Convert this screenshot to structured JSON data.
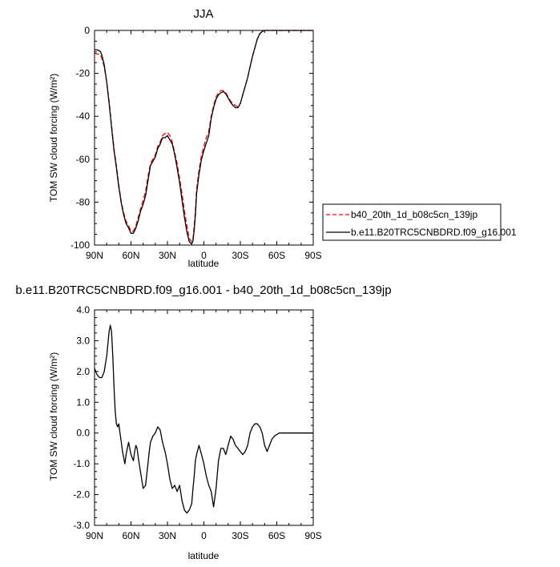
{
  "chart_data": [
    {
      "type": "line",
      "title": "JJA",
      "xlabel": "latitude",
      "ylabel": "TOM SW cloud forcing (W/m²)",
      "xlim": [
        90,
        -90
      ],
      "ylim": [
        -100,
        0
      ],
      "xticks": [
        90,
        60,
        30,
        0,
        -30,
        -60,
        -90
      ],
      "xtick_labels": [
        "90N",
        "60N",
        "30N",
        "0",
        "30S",
        "60S",
        "90S"
      ],
      "yticks": [
        0,
        -20,
        -40,
        -60,
        -80,
        -100
      ],
      "ytick_labels": [
        "0",
        "-20",
        "-40",
        "-60",
        "-80",
        "-100"
      ],
      "grid": false,
      "legend_position": "right",
      "series": [
        {
          "name": "b40_20th_1d_b08c5cn_139jp",
          "color": "#ff0000",
          "dash": "dashed",
          "x": [
            90,
            88,
            86,
            85,
            84,
            82,
            80,
            78,
            76,
            74,
            72,
            70,
            68,
            66,
            64,
            62,
            60,
            58,
            56,
            54,
            52,
            50,
            48,
            46,
            44,
            42,
            40,
            38,
            36,
            34,
            32,
            30,
            28,
            26,
            24,
            22,
            20,
            18,
            16,
            14,
            12,
            10,
            9,
            8,
            7,
            6,
            4,
            2,
            0,
            -2,
            -4,
            -6,
            -8,
            -10,
            -12,
            -14,
            -16,
            -18,
            -20,
            -22,
            -24,
            -26,
            -28,
            -30,
            -32,
            -34,
            -36,
            -38,
            -40,
            -42,
            -44,
            -46,
            -48,
            -50,
            -52,
            -54,
            -56,
            -58,
            -60,
            -62,
            -64,
            -66,
            -68,
            -70,
            -75,
            -80,
            -85,
            -90
          ],
          "y": [
            -10.5,
            -11,
            -11,
            -11.5,
            -13,
            -17,
            -24,
            -33,
            -44,
            -55,
            -63,
            -72,
            -80,
            -85,
            -89,
            -91,
            -93.5,
            -93.5,
            -91,
            -87,
            -83,
            -79,
            -75,
            -68,
            -62,
            -60,
            -58,
            -54,
            -52,
            -49,
            -48,
            -47.5,
            -49,
            -52,
            -57,
            -62,
            -69,
            -76,
            -84,
            -91,
            -97,
            -98.5,
            -97,
            -91,
            -84,
            -74,
            -65,
            -58,
            -54,
            -50,
            -47,
            -40,
            -35,
            -31,
            -29,
            -28,
            -28,
            -29,
            -31,
            -33,
            -34,
            -35,
            -35.5,
            -34,
            -30,
            -26,
            -22,
            -17,
            -12,
            -8,
            -4,
            -1.5,
            -0.5,
            0,
            0,
            0,
            0,
            0,
            0,
            0,
            0,
            0,
            0,
            0,
            0,
            0,
            0,
            0
          ]
        },
        {
          "name": "b.e11.B20TRC5CNBDRD.f09_g16.001",
          "color": "#000000",
          "dash": "solid",
          "x": [
            90,
            88,
            86,
            85,
            84,
            82,
            80,
            78,
            76,
            74,
            72,
            70,
            68,
            66,
            64,
            62,
            60,
            58,
            56,
            54,
            52,
            50,
            48,
            46,
            44,
            42,
            40,
            38,
            36,
            34,
            32,
            30,
            28,
            26,
            24,
            22,
            20,
            18,
            16,
            14,
            12,
            10,
            9,
            8,
            7,
            6,
            4,
            2,
            0,
            -2,
            -4,
            -6,
            -8,
            -10,
            -12,
            -14,
            -16,
            -18,
            -20,
            -22,
            -24,
            -26,
            -28,
            -30,
            -32,
            -34,
            -36,
            -38,
            -40,
            -42,
            -44,
            -46,
            -48,
            -50,
            -52,
            -54,
            -56,
            -58,
            -60,
            -62,
            -64,
            -66,
            -68,
            -70,
            -75,
            -80,
            -85,
            -90
          ],
          "y": [
            -9,
            -9,
            -9.5,
            -10,
            -11.5,
            -16,
            -24,
            -34,
            -45,
            -56,
            -64,
            -73,
            -80.5,
            -86,
            -90,
            -92,
            -94.5,
            -94.5,
            -92,
            -88.5,
            -84,
            -81,
            -77,
            -70,
            -63,
            -61,
            -59,
            -55,
            -53,
            -50,
            -50,
            -49,
            -51,
            -53,
            -58,
            -64,
            -71,
            -79,
            -87,
            -94,
            -98.5,
            -99.5,
            -98,
            -93,
            -86,
            -76,
            -67,
            -60,
            -56,
            -52.5,
            -49,
            -41,
            -36,
            -32,
            -30,
            -29,
            -28.5,
            -29.5,
            -31.5,
            -33.5,
            -35,
            -36,
            -36,
            -34,
            -30,
            -26,
            -22,
            -17,
            -12,
            -8,
            -4,
            -1.5,
            -0.5,
            0,
            0,
            0,
            0,
            0,
            0,
            0,
            0,
            0,
            0,
            0,
            0,
            0,
            0,
            0
          ]
        }
      ]
    },
    {
      "type": "line",
      "title": "b.e11.B20TRC5CNBDRD.f09_g16.001 - b40_20th_1d_b08c5cn_139jp",
      "xlabel": "latitude",
      "ylabel": "TOM SW cloud forcing (W/m²)",
      "xlim": [
        90,
        -90
      ],
      "ylim": [
        -3.0,
        4.0
      ],
      "xticks": [
        90,
        60,
        30,
        0,
        -30,
        -60,
        -90
      ],
      "xtick_labels": [
        "90N",
        "60N",
        "30N",
        "0",
        "30S",
        "60S",
        "90S"
      ],
      "yticks": [
        4,
        3,
        2,
        1,
        0,
        -1,
        -2,
        -3
      ],
      "ytick_labels": [
        "4.0",
        "3.0",
        "2.0",
        "1.0",
        "0.0",
        "-1.0",
        "-2.0",
        "-3.0"
      ],
      "grid": false,
      "series": [
        {
          "name": "",
          "color": "#000000",
          "dash": "solid",
          "x": [
            90,
            88,
            86,
            84,
            82,
            80,
            78,
            77,
            76,
            75,
            74,
            73,
            72,
            71,
            70,
            69,
            68,
            67,
            66,
            65,
            64,
            63,
            62,
            60,
            58,
            57,
            56,
            55,
            54,
            52,
            50,
            48,
            46,
            45,
            44,
            42,
            40,
            38,
            36,
            34,
            32,
            30,
            28,
            26,
            24,
            22,
            20,
            18,
            16,
            14,
            12,
            10,
            9,
            8,
            7,
            6,
            4,
            2,
            0,
            -2,
            -4,
            -6,
            -8,
            -10,
            -12,
            -14,
            -16,
            -18,
            -20,
            -22,
            -24,
            -26,
            -28,
            -30,
            -32,
            -34,
            -36,
            -38,
            -40,
            -42,
            -44,
            -46,
            -48,
            -50,
            -52,
            -54,
            -56,
            -58,
            -60,
            -62,
            -64,
            -66,
            -68,
            -70,
            -75,
            -80,
            -85,
            -90
          ],
          "y": [
            2.1,
            1.9,
            1.8,
            1.8,
            2.0,
            2.5,
            3.3,
            3.5,
            3.3,
            2.5,
            1.5,
            0.7,
            0.3,
            0.2,
            0.3,
            0.0,
            -0.3,
            -0.6,
            -0.8,
            -1.0,
            -0.7,
            -0.5,
            -0.3,
            -0.7,
            -0.9,
            -0.6,
            -0.4,
            -0.5,
            -0.8,
            -1.3,
            -1.8,
            -1.7,
            -1.0,
            -0.6,
            -0.3,
            -0.1,
            0.0,
            0.2,
            0.1,
            -0.3,
            -0.6,
            -1.0,
            -1.5,
            -1.8,
            -1.7,
            -1.9,
            -1.7,
            -2.2,
            -2.5,
            -2.6,
            -2.5,
            -2.3,
            -1.8,
            -1.4,
            -0.9,
            -0.7,
            -0.4,
            -0.7,
            -1.0,
            -1.4,
            -1.7,
            -1.9,
            -2.4,
            -1.8,
            -0.9,
            -0.5,
            -0.5,
            -0.7,
            -0.4,
            -0.1,
            -0.2,
            -0.4,
            -0.5,
            -0.6,
            -0.7,
            -0.6,
            -0.4,
            0.0,
            0.2,
            0.3,
            0.3,
            0.2,
            0.0,
            -0.4,
            -0.6,
            -0.4,
            -0.2,
            -0.1,
            -0.05,
            0,
            0,
            0,
            0,
            0,
            0,
            0,
            0,
            0
          ]
        }
      ]
    }
  ]
}
